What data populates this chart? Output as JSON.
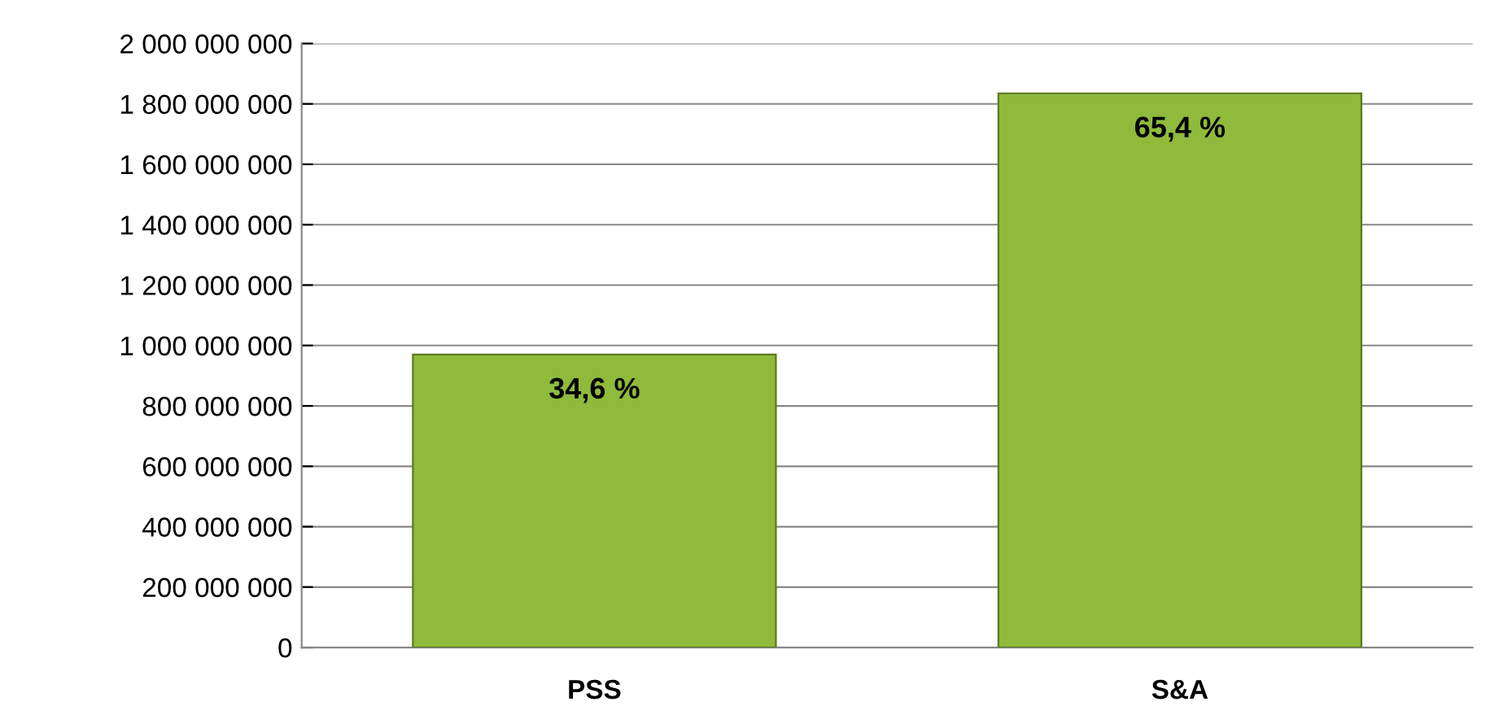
{
  "chart_data": {
    "type": "bar",
    "categories": [
      "PSS",
      "S&A"
    ],
    "values": [
      970000000,
      1835000000
    ],
    "color": "#8fba3c",
    "annotations": [
      "34,6 %",
      "65,4 %"
    ],
    "ylim": [
      0,
      2000000000
    ],
    "yticks": [
      {
        "value": 0,
        "label": "0"
      },
      {
        "value": 200000000,
        "label": "200 000 000"
      },
      {
        "value": 400000000,
        "label": "400 000 000"
      },
      {
        "value": 600000000,
        "label": "600 000 000"
      },
      {
        "value": 800000000,
        "label": "800 000 000"
      },
      {
        "value": 1000000000,
        "label": "1 000 000 000"
      },
      {
        "value": 1200000000,
        "label": "1 200 000 000"
      },
      {
        "value": 1400000000,
        "label": "1 400 000 000"
      },
      {
        "value": 1600000000,
        "label": "1 600 000 000"
      },
      {
        "value": 1800000000,
        "label": "1 800 000 000"
      },
      {
        "value": 2000000000,
        "label": "2 000 000 000"
      }
    ],
    "grid": "y",
    "legend": false
  }
}
